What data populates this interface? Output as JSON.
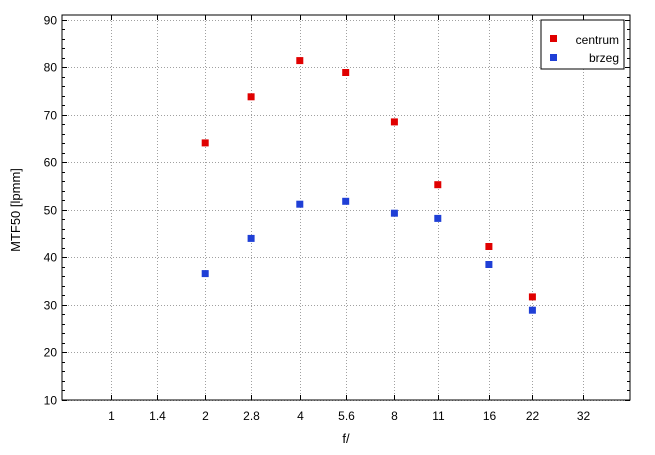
{
  "chart_data": {
    "type": "scatter",
    "x_scale": "log",
    "xlabel": "f/",
    "ylabel": "MTF50 [lpmm]",
    "xticks": [
      "1",
      "1.4",
      "2",
      "2.8",
      "4",
      "5.6",
      "8",
      "11",
      "16",
      "22",
      "32"
    ],
    "xlim": [
      "0.7",
      "45"
    ],
    "ylim": [
      10,
      91
    ],
    "yticks": [
      10,
      20,
      30,
      40,
      50,
      60,
      70,
      80,
      90
    ],
    "grid": true,
    "legend_position": "top-right",
    "series": [
      {
        "name": "centrum",
        "color": "#e00000",
        "x": [
          "2",
          "2.8",
          "4",
          "5.6",
          "8",
          "11",
          "16",
          "22"
        ],
        "y": [
          64.1,
          73.8,
          81.4,
          78.9,
          68.5,
          55.3,
          42.3,
          31.7
        ]
      },
      {
        "name": "brzeg",
        "color": "#1f3fd6",
        "x": [
          "2",
          "2.8",
          "4",
          "5.6",
          "8",
          "11",
          "16",
          "22"
        ],
        "y": [
          36.6,
          44.0,
          51.2,
          51.8,
          49.3,
          48.2,
          38.5,
          28.9
        ]
      }
    ]
  }
}
